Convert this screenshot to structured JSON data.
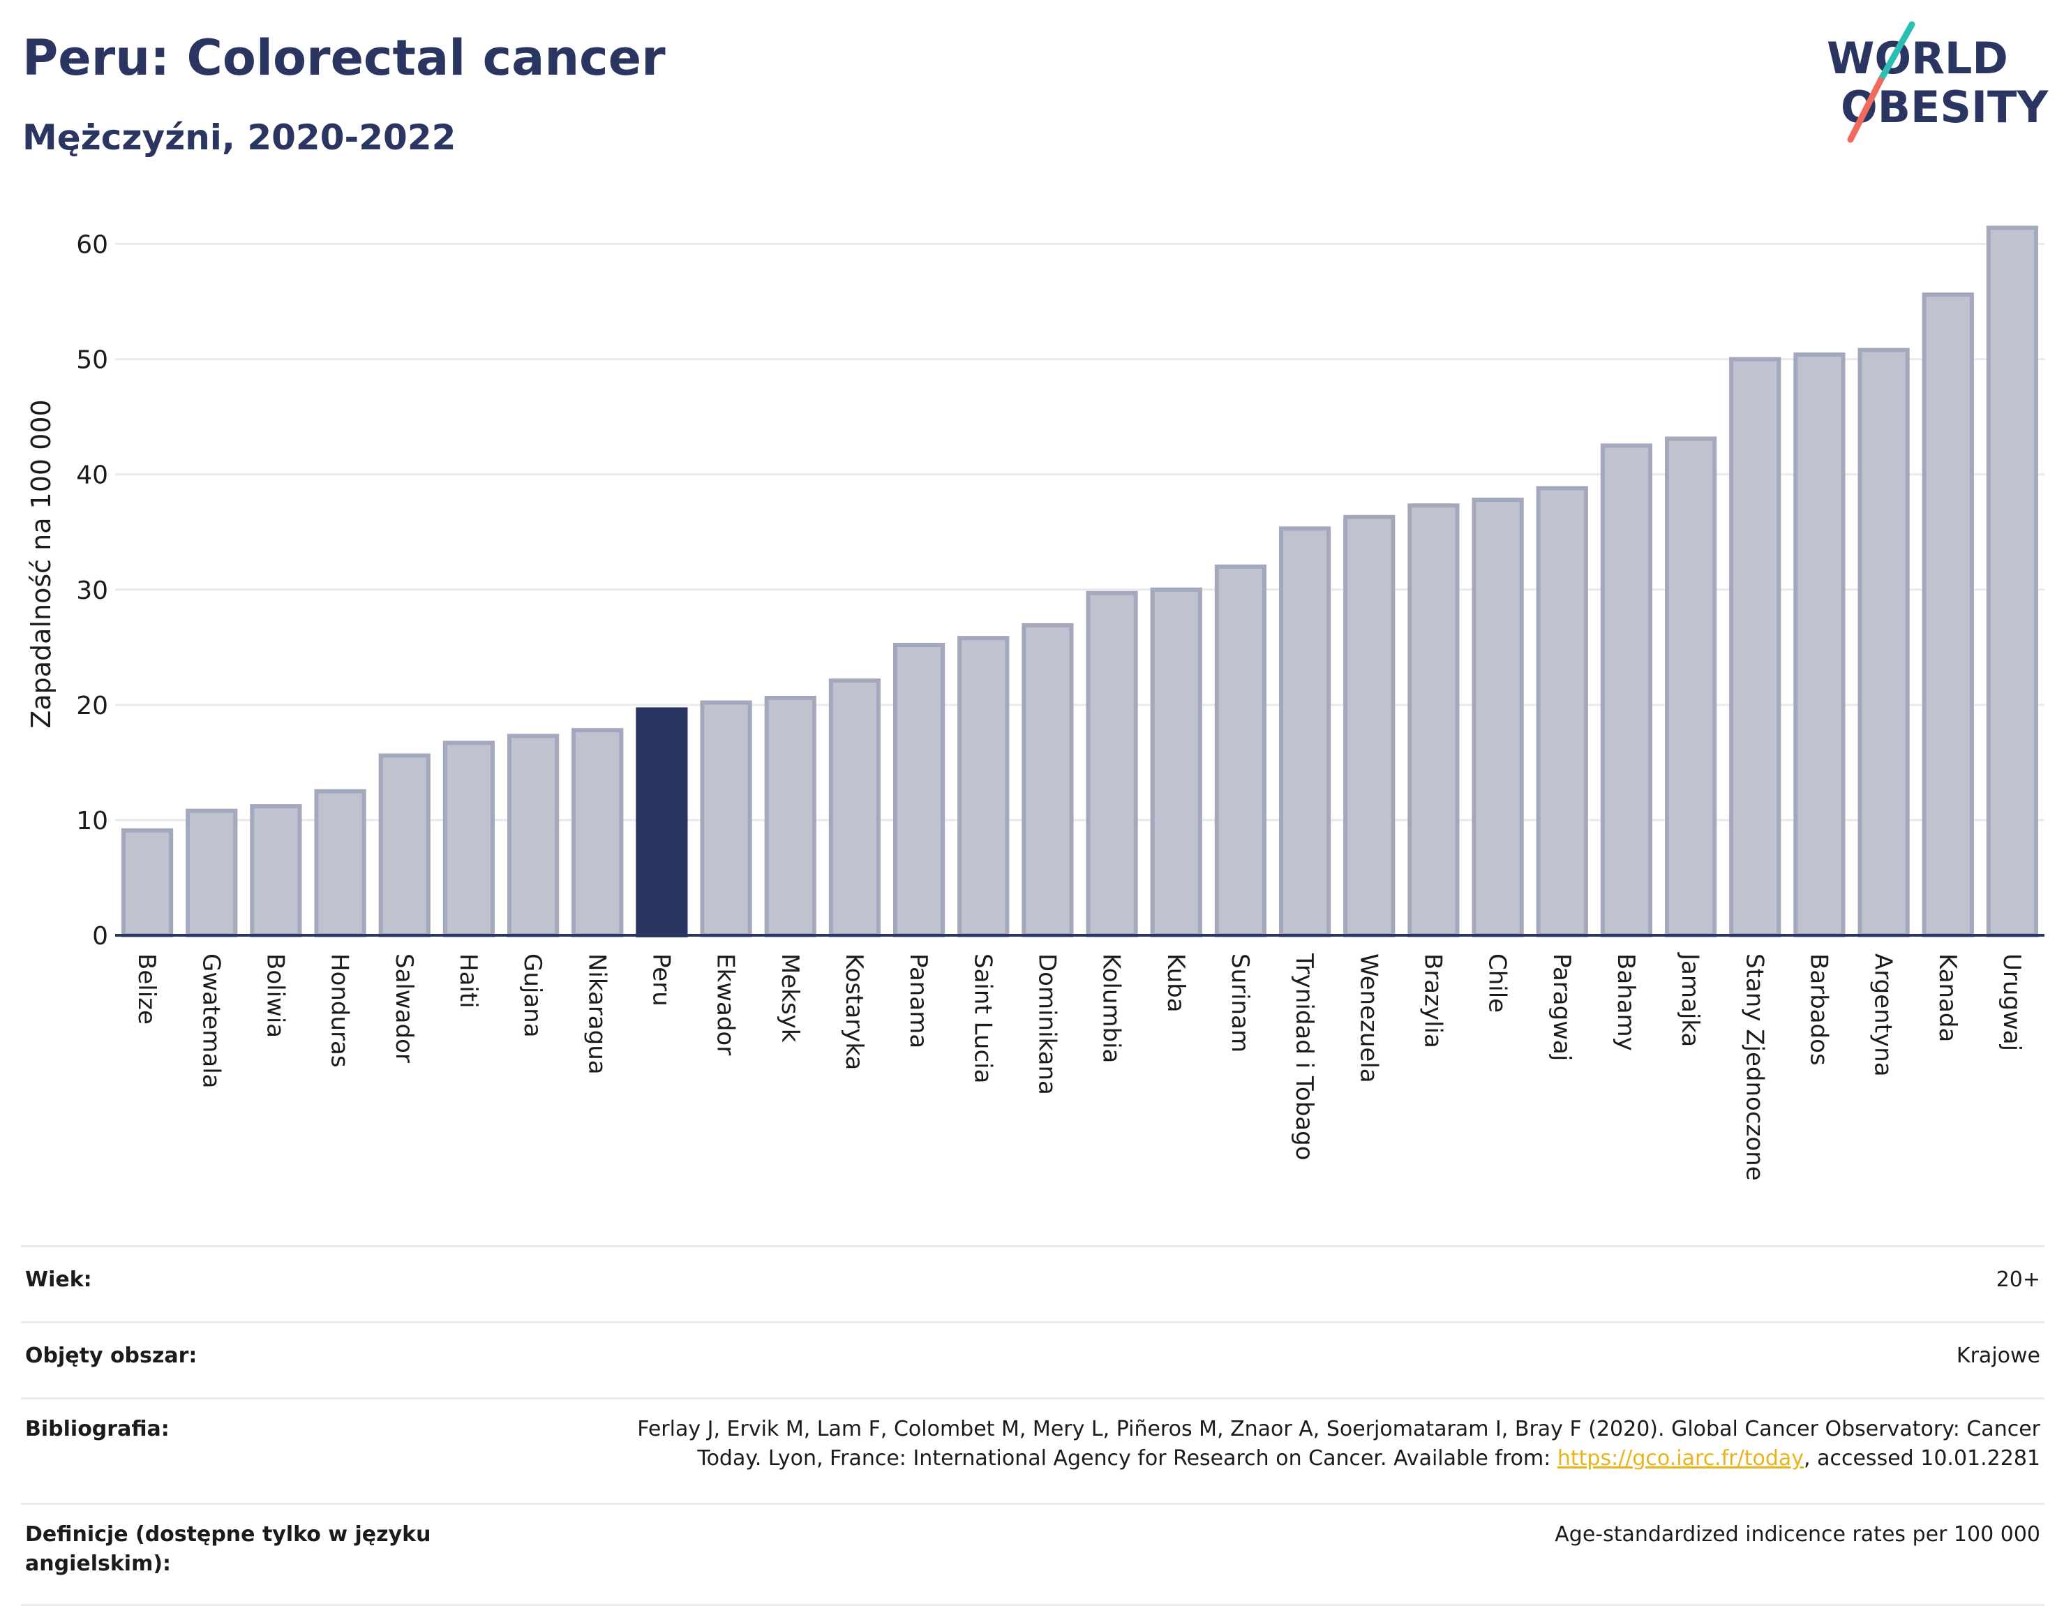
{
  "title": "Peru: Colorectal cancer",
  "subtitle": "Mężczyźni, 2020-2022",
  "logo": {
    "line1": "WORLD",
    "line2": "OBESITY",
    "colors": {
      "text": "#2a3561",
      "teal": "#2bbfb4",
      "coral": "#ee6b5e"
    }
  },
  "colors": {
    "bar": "#bfc2cf",
    "bar_border": "#a3a8bd",
    "highlight": "#2a3561",
    "grid": "#e9e9ee",
    "axis": "#2a3561"
  },
  "chart_data": {
    "type": "bar",
    "ylabel": "Zapadalność na 100 000",
    "ylim": [
      0,
      63
    ],
    "yticks": [
      0,
      10,
      20,
      30,
      40,
      50,
      60
    ],
    "grid": true,
    "highlight": "Peru",
    "categories": [
      "Belize",
      "Gwatemala",
      "Boliwia",
      "Honduras",
      "Salwador",
      "Haiti",
      "Gujana",
      "Nikaragua",
      "Peru",
      "Ekwador",
      "Meksyk",
      "Kostaryka",
      "Panama",
      "Saint Lucia",
      "Dominikana",
      "Kolumbia",
      "Kuba",
      "Surinam",
      "Trynidad i Tobago",
      "Wenezuela",
      "Brazylia",
      "Chile",
      "Paragwaj",
      "Bahamy",
      "Jamajka",
      "Stany Zjednoczone",
      "Barbados",
      "Argentyna",
      "Kanada",
      "Urugwaj"
    ],
    "values": [
      9.1,
      10.8,
      11.2,
      12.5,
      15.6,
      16.7,
      17.3,
      17.8,
      19.6,
      20.2,
      20.6,
      22.1,
      25.2,
      25.8,
      26.9,
      29.7,
      30.0,
      32.0,
      35.3,
      36.3,
      37.3,
      37.8,
      38.8,
      42.5,
      43.1,
      50.0,
      50.4,
      50.8,
      55.6,
      61.4
    ]
  },
  "info": {
    "age_label": "Wiek:",
    "age_value": "20+",
    "coverage_label": "Objęty obszar:",
    "coverage_value": "Krajowe",
    "biblio_label": "Bibliografia:",
    "biblio_text_1": "Ferlay J, Ervik M, Lam F, Colombet M, Mery L, Piñeros M, Znaor A, Soerjomataram I, Bray F (2020). Global Cancer Observatory: Cancer",
    "biblio_text_2": "Today. Lyon, France: International Agency for Research on Cancer. Available from: ",
    "biblio_link": "https://gco.iarc.fr/today",
    "biblio_text_3": ", accessed 10.01.2281",
    "defs_label": "Definicje (dostępne tylko w języku angielskim):",
    "defs_value": "Age-standardized indicence rates per 100 000"
  }
}
